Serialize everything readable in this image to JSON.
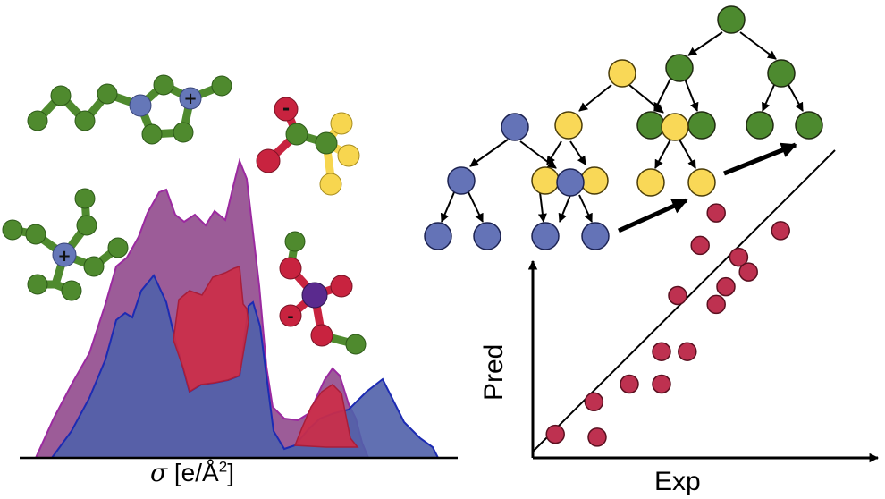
{
  "sigma_profile": {
    "symbol": "σ",
    "unit_open": " [e/Å",
    "unit_exp": "2",
    "unit_close": "]",
    "colors": {
      "purple": "#8b3f86",
      "blue": "#5060aa",
      "red": "#cc2e48"
    }
  },
  "molecules": {
    "colors": {
      "green": "#4f8a2e",
      "blue": "#6577b8",
      "red": "#c8233f",
      "yellow": "#f7d64f",
      "purple": "#5a2a8e"
    },
    "charges": [
      "+",
      "+",
      "-",
      "-"
    ]
  },
  "tree": {
    "colors": {
      "green": "#4d8a2f",
      "yellow": "#f9d857",
      "blue": "#6473b7"
    }
  },
  "parity_plot": {
    "xlabel": "Exp",
    "ylabel": "Pred",
    "point_color": "#be3150",
    "points": [
      [
        0.07,
        0.08
      ],
      [
        0.19,
        0.19
      ],
      [
        0.2,
        0.07
      ],
      [
        0.3,
        0.25
      ],
      [
        0.4,
        0.25
      ],
      [
        0.4,
        0.36
      ],
      [
        0.48,
        0.36
      ],
      [
        0.45,
        0.55
      ],
      [
        0.57,
        0.52
      ],
      [
        0.6,
        0.58
      ],
      [
        0.52,
        0.72
      ],
      [
        0.57,
        0.83
      ],
      [
        0.64,
        0.68
      ],
      [
        0.77,
        0.77
      ],
      [
        0.67,
        0.63
      ]
    ]
  }
}
